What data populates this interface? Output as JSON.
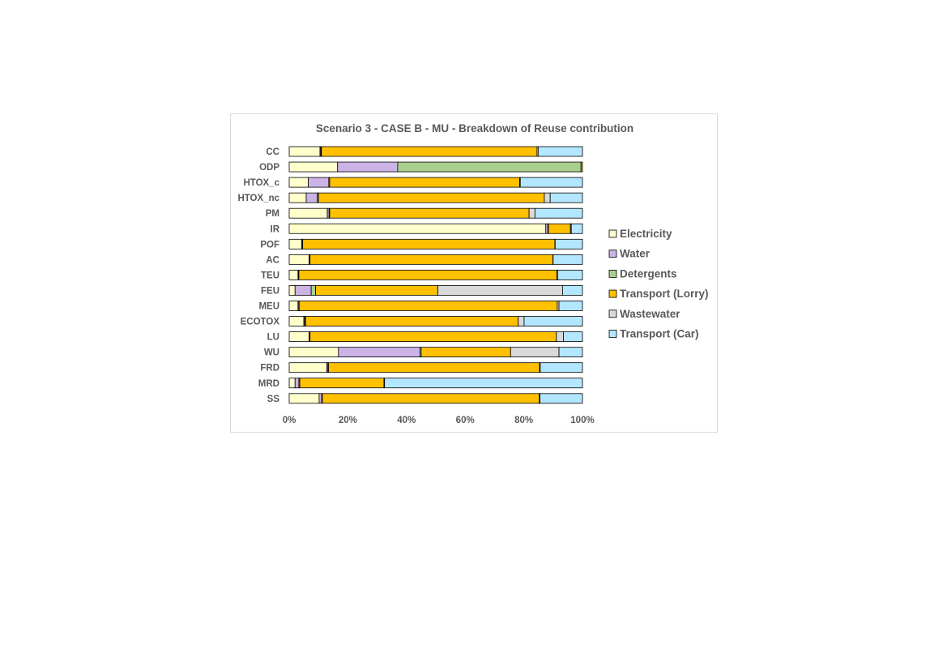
{
  "chart_data": {
    "type": "bar",
    "orientation": "horizontal",
    "stacked": "100%",
    "title": "Scenario 3 - CASE B - MU - Breakdown of Reuse contribution",
    "xlabel": "",
    "ylabel": "",
    "xlim": [
      0,
      100
    ],
    "x_ticks": [
      "0%",
      "20%",
      "40%",
      "60%",
      "80%",
      "100%"
    ],
    "grid": false,
    "legend_position": "right",
    "categories": [
      "CC",
      "ODP",
      "HTOX_c",
      "HTOX_nc",
      "PM",
      "IR",
      "POF",
      "AC",
      "TEU",
      "FEU",
      "MEU",
      "ECOTOX",
      "LU",
      "WU",
      "FRD",
      "MRD",
      "SS"
    ],
    "series": [
      {
        "name": "Electricity",
        "color": "#ffffcc",
        "values": [
          10.5,
          16.5,
          6.5,
          5.8,
          13.0,
          87.5,
          4.3,
          6.8,
          3.0,
          2.0,
          3.0,
          5.0,
          6.8,
          16.8,
          12.8,
          2.0,
          10.2
        ]
      },
      {
        "name": "Water",
        "color": "#ccb3e6",
        "values": [
          0.3,
          20.5,
          7.0,
          3.8,
          0.6,
          0.7,
          0.2,
          0.2,
          0.2,
          5.5,
          0.3,
          0.3,
          0.2,
          27.8,
          0.4,
          1.3,
          0.9
        ]
      },
      {
        "name": "Detergents",
        "color": "#a9d08e",
        "values": [
          0.2,
          62.5,
          0.3,
          0.4,
          0.2,
          0.2,
          0.1,
          0.1,
          0.1,
          1.5,
          0.1,
          0.3,
          0.1,
          0.4,
          0.2,
          0.3,
          0.2
        ]
      },
      {
        "name": "Transport (Lorry)",
        "color": "#ffc000",
        "values": [
          73.5,
          0.5,
          64.8,
          77.0,
          68.0,
          7.5,
          86.0,
          82.8,
          88.0,
          41.7,
          88.0,
          72.5,
          84.0,
          30.5,
          72.0,
          28.7,
          74.0
        ]
      },
      {
        "name": "Wastewater",
        "color": "#d9d9d9",
        "values": [
          0.4,
          0.0,
          0.2,
          2.0,
          2.0,
          0.3,
          0.1,
          0.1,
          0.2,
          42.5,
          0.6,
          2.0,
          2.4,
          16.5,
          0.2,
          0.2,
          0.2
        ]
      },
      {
        "name": "Transport (Car)",
        "color": "#b3e6ff",
        "values": [
          15.1,
          0.0,
          21.2,
          11.0,
          16.2,
          3.8,
          9.3,
          10.0,
          8.5,
          6.8,
          8.0,
          19.9,
          6.5,
          8.0,
          14.4,
          67.5,
          14.5
        ]
      }
    ]
  }
}
